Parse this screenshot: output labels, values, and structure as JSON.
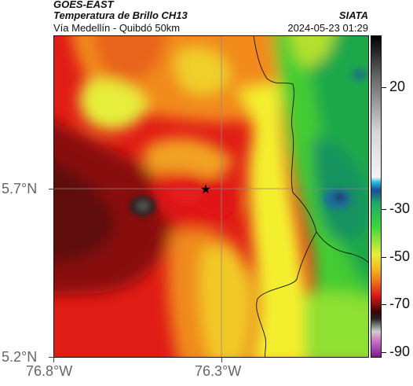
{
  "header": {
    "satellite": "GOES-EAST",
    "product": "Temperatura de Brillo CH13",
    "location": "Vía Medellín - Quibdó 50km",
    "org": "SIATA",
    "datetime": "2024-05-23 01:29"
  },
  "map": {
    "lat_ticks": [
      "5.7°N",
      "5.2°N"
    ],
    "lon_ticks": [
      "76.8°W",
      "76.3°W"
    ],
    "marker": "black-star",
    "colors": {
      "very_cold": "#1a2a55",
      "blue": "#1e6ea3",
      "green": "#2ecc40",
      "yellow": "#f4f430",
      "orange": "#f79a1e",
      "red": "#e21a1a",
      "dark_red": "#6a0f0f",
      "black": "#111111"
    }
  },
  "colorbar": {
    "ticks": [
      "20",
      "-30",
      "-50",
      "-70",
      "-90"
    ]
  }
}
